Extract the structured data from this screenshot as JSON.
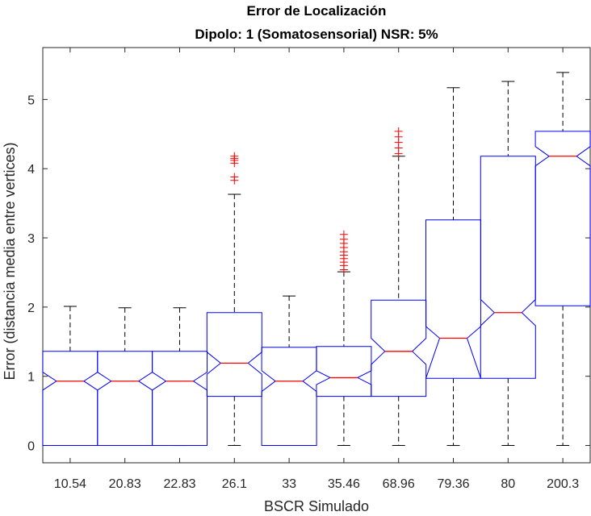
{
  "chart_data": {
    "type": "boxplot",
    "title": "Error de Localización",
    "subtitle": "Dipolo: 1 (Somatosensorial) NSR: 5%",
    "xlabel": "BSCR Simulado",
    "ylabel": "Error (distancia media entre vertices)",
    "ylim": [
      -0.25,
      5.75
    ],
    "yticks": [
      0,
      1,
      2,
      3,
      4,
      5
    ],
    "grid": false,
    "notched": true,
    "colors": {
      "box": "#0000ff",
      "median": "#ff0000",
      "whisker": "#000000",
      "outlier": "#ff0000",
      "axis": "#262626"
    },
    "categories": [
      "10.54",
      "20.83",
      "22.83",
      "26.1",
      "33",
      "35.46",
      "68.96",
      "79.36",
      "80",
      "200.3"
    ],
    "boxes": [
      {
        "q1": 0,
        "median": 0.93,
        "q3": 1.36,
        "notch_low": 0.8,
        "notch_high": 1.06,
        "whisker_low": 0,
        "whisker_high": 2.01,
        "outliers": []
      },
      {
        "q1": 0,
        "median": 0.93,
        "q3": 1.36,
        "notch_low": 0.8,
        "notch_high": 1.06,
        "whisker_low": 0,
        "whisker_high": 1.99,
        "outliers": []
      },
      {
        "q1": 0,
        "median": 0.93,
        "q3": 1.36,
        "notch_low": 0.8,
        "notch_high": 1.06,
        "whisker_low": 0,
        "whisker_high": 1.99,
        "outliers": []
      },
      {
        "q1": 0.71,
        "median": 1.19,
        "q3": 1.92,
        "notch_low": 1.03,
        "notch_high": 1.35,
        "whisker_low": 0,
        "whisker_high": 3.63,
        "outliers": [
          3.83,
          3.88,
          4.08,
          4.12,
          4.15,
          4.18
        ]
      },
      {
        "q1": 0,
        "median": 0.93,
        "q3": 1.42,
        "notch_low": 0.78,
        "notch_high": 1.08,
        "whisker_low": 0,
        "whisker_high": 2.16,
        "outliers": []
      },
      {
        "q1": 0.71,
        "median": 0.98,
        "q3": 1.43,
        "notch_low": 0.88,
        "notch_high": 1.08,
        "whisker_low": 0,
        "whisker_high": 2.51,
        "outliers": [
          2.54,
          2.6,
          2.65,
          2.7,
          2.75,
          2.8,
          2.86,
          2.92,
          2.98,
          3.05
        ]
      },
      {
        "q1": 0.71,
        "median": 1.36,
        "q3": 2.1,
        "notch_low": 1.17,
        "notch_high": 1.55,
        "whisker_low": 0,
        "whisker_high": 4.18,
        "outliers": [
          4.22,
          4.3,
          4.38,
          4.46,
          4.54
        ]
      },
      {
        "q1": 0.97,
        "median": 1.55,
        "q3": 3.26,
        "notch_low": 0.97,
        "notch_high": 1.72,
        "whisker_low": 0,
        "whisker_high": 5.17,
        "outliers": []
      },
      {
        "q1": 0.97,
        "median": 1.92,
        "q3": 4.18,
        "notch_low": 1.73,
        "notch_high": 2.11,
        "whisker_low": 0,
        "whisker_high": 5.26,
        "outliers": []
      },
      {
        "q1": 2.02,
        "median": 4.18,
        "q3": 4.54,
        "notch_low": 4.04,
        "notch_high": 4.32,
        "whisker_low": 0,
        "whisker_high": 5.39,
        "outliers": []
      }
    ]
  }
}
